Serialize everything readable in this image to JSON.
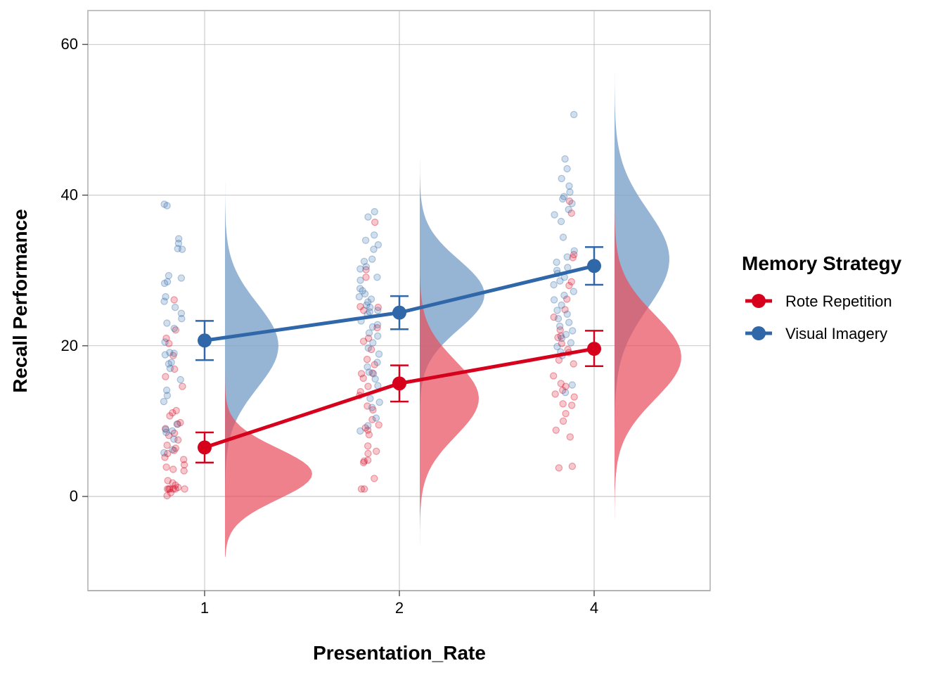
{
  "chart_data": {
    "type": "raincloud",
    "xlabel": "Presentation_Rate",
    "ylabel": "Recall Performance",
    "categories": [
      "1",
      "2",
      "4"
    ],
    "ylim": [
      -12.5,
      64.5
    ],
    "yticks": [
      0,
      20,
      40,
      60
    ],
    "grid": true,
    "legend": {
      "title": "Memory Strategy",
      "placement": "right",
      "entries": [
        "Rote Repetition",
        "Visual Imagery"
      ]
    },
    "series": [
      {
        "name": "Rote Repetition",
        "color": "#D7001C",
        "density_color": "#E8505E",
        "means": [
          6.5,
          15.0,
          19.6
        ],
        "ci_low": [
          4.5,
          12.6,
          17.3
        ],
        "ci_high": [
          8.5,
          17.4,
          22.0
        ],
        "points": [
          [
            26.1,
            22.1,
            21.0,
            20.3,
            18.7,
            16.9,
            15.9,
            14.6,
            11.4,
            11.1,
            10.7,
            9.8,
            9.6,
            9.0,
            8.4,
            8.1,
            7.5,
            6.8,
            6.4,
            6.1,
            5.7,
            5.2,
            4.9,
            4.2,
            3.9,
            3.6,
            3.4,
            2.1,
            1.8,
            1.5,
            1.2,
            1.0,
            1.0,
            1.0,
            1.0,
            1.0,
            1.0,
            0.5,
            0.1
          ],
          [
            36.4,
            30.1,
            29.1,
            25.2,
            25.1,
            24.7,
            22.4,
            21.0,
            20.6,
            19.5,
            18.2,
            17.5,
            16.4,
            16.3,
            15.7,
            14.6,
            13.9,
            13.4,
            12.0,
            11.5,
            10.2,
            9.5,
            9.1,
            8.8,
            8.2,
            6.7,
            6.0,
            5.7,
            4.8,
            4.7,
            4.5,
            2.4,
            1.0,
            1.0
          ],
          [
            39.2,
            37.6,
            32.1,
            31.7,
            28.5,
            28.0,
            26.2,
            24.8,
            23.8,
            22.1,
            21.3,
            21.1,
            20.3,
            19.5,
            19.1,
            18.1,
            17.6,
            16.0,
            15.0,
            14.6,
            14.1,
            13.6,
            13.2,
            12.3,
            12.1,
            11.0,
            10.0,
            8.8,
            7.9,
            4.0,
            3.8
          ]
        ],
        "density": [
          {
            "mean": 3.0,
            "sd": 3.4,
            "min": -8.0,
            "max": 34.0,
            "wmax": 124
          },
          {
            "mean": 13.0,
            "sd": 5.0,
            "min": -9.3,
            "max": 42.0,
            "wmax": 84
          },
          {
            "mean": 18.5,
            "sd": 5.6,
            "min": -5.3,
            "max": 48.0,
            "wmax": 95
          }
        ]
      },
      {
        "name": "Visual Imagery",
        "color": "#2F67A8",
        "density_color": "#7FA4CB",
        "means": [
          20.7,
          24.4,
          30.6
        ],
        "ci_low": [
          18.1,
          22.2,
          28.1
        ],
        "ci_high": [
          23.3,
          26.6,
          33.1
        ],
        "points": [
          [
            38.8,
            38.6,
            34.2,
            33.6,
            32.9,
            32.8,
            29.3,
            29.0,
            28.5,
            28.3,
            26.5,
            25.9,
            25.1,
            24.3,
            23.6,
            23.0,
            22.3,
            20.5,
            19.1,
            19.0,
            18.8,
            17.8,
            17.6,
            17.0,
            15.5,
            14.1,
            13.4,
            12.6,
            9.6,
            8.9,
            8.7,
            8.5,
            7.6,
            6.2,
            5.8
          ],
          [
            37.8,
            37.1,
            34.7,
            34.0,
            33.4,
            32.8,
            31.5,
            31.2,
            30.5,
            30.2,
            29.1,
            28.7,
            27.6,
            27.3,
            26.9,
            26.5,
            26.2,
            25.8,
            25.4,
            25.1,
            24.7,
            24.5,
            24.2,
            23.3,
            22.8,
            22.5,
            21.7,
            21.3,
            20.4,
            19.7,
            18.9,
            17.8,
            17.2,
            16.5,
            16.3,
            15.6,
            14.7,
            13.0,
            12.5,
            11.8,
            10.4,
            9.4,
            8.7
          ],
          [
            50.7,
            44.8,
            43.5,
            42.2,
            41.2,
            40.4,
            39.8,
            39.5,
            38.9,
            38.1,
            37.4,
            36.5,
            34.4,
            32.6,
            31.8,
            31.1,
            30.4,
            30.0,
            29.6,
            29.1,
            28.6,
            28.1,
            27.2,
            26.7,
            26.1,
            25.4,
            24.7,
            24.2,
            23.6,
            23.1,
            22.6,
            22.0,
            21.5,
            21.0,
            20.4,
            19.9,
            19.2,
            18.7,
            14.8,
            13.8
          ]
        ],
        "density": [
          {
            "mean": 20.0,
            "sd": 5.6,
            "min": -4.2,
            "max": 49.3,
            "wmax": 76
          },
          {
            "mean": 26.8,
            "sd": 4.6,
            "min": -0.2,
            "max": 46.8,
            "wmax": 92
          },
          {
            "mean": 31.5,
            "sd": 6.5,
            "min": 9.0,
            "max": 61.2,
            "wmax": 78
          }
        ]
      }
    ]
  }
}
